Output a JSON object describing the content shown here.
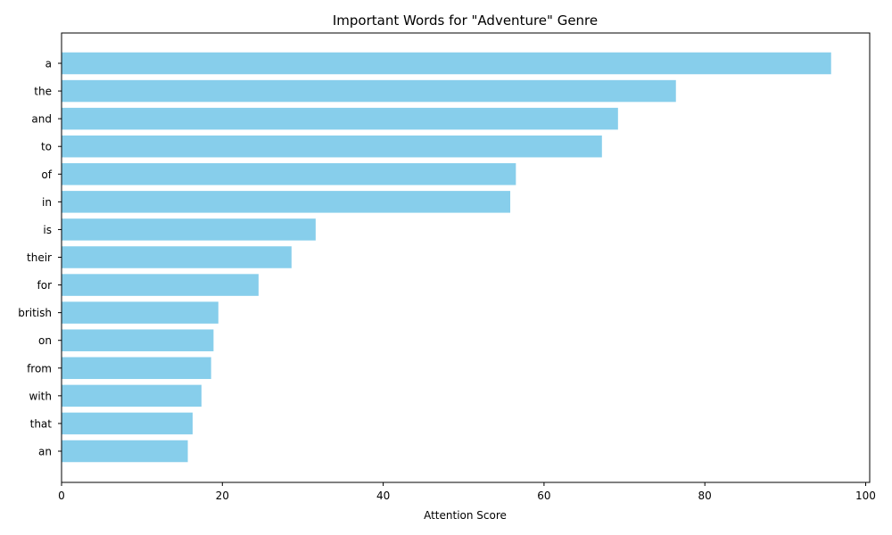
{
  "chart_data": {
    "type": "bar",
    "orientation": "horizontal",
    "title": "Important Words for \"Adventure\" Genre",
    "xlabel": "Attention Score",
    "ylabel": "",
    "xlim": [
      0,
      100.5
    ],
    "xticks": [
      0,
      20,
      40,
      60,
      80,
      100
    ],
    "xtick_labels": [
      "0",
      "20",
      "40",
      "60",
      "80",
      "100"
    ],
    "grid": false,
    "bar_color": "#87CEEB",
    "categories": [
      "a",
      "the",
      "and",
      "to",
      "of",
      "in",
      "is",
      "their",
      "for",
      "british",
      "on",
      "from",
      "with",
      "that",
      "an"
    ],
    "values": [
      95.7,
      76.4,
      69.2,
      67.2,
      56.5,
      55.8,
      31.6,
      28.6,
      24.5,
      19.5,
      18.9,
      18.6,
      17.4,
      16.3,
      15.7
    ]
  }
}
